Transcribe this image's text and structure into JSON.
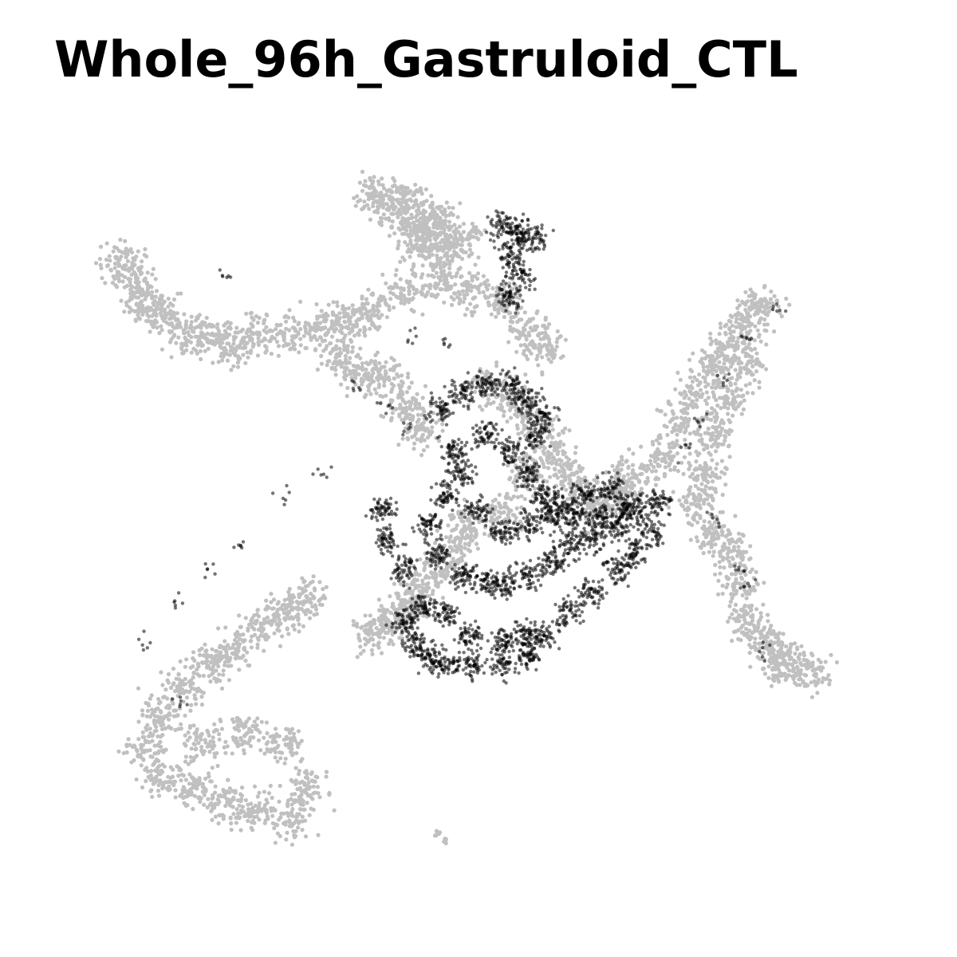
{
  "chart_data": {
    "type": "scatter",
    "title": "Whole_96h_Gastruloid_CTL",
    "xlabel": "",
    "ylabel": "",
    "axes_visible": false,
    "grid": false,
    "legend": "none",
    "xlim": [
      0,
      100
    ],
    "ylim": [
      0,
      100
    ],
    "colors": {
      "background": "#c0c0c0",
      "highlight": "#000000"
    },
    "series": [
      {
        "role": "background",
        "clusters": [
          {
            "id": "top-islet",
            "points": [
              [
                36,
                93
              ],
              [
                38,
                91
              ],
              [
                40,
                92
              ],
              [
                41,
                89
              ],
              [
                42,
                86
              ],
              [
                43,
                88
              ],
              [
                44,
                90
              ],
              [
                45,
                85
              ],
              [
                47,
                87
              ]
            ]
          },
          {
            "id": "upper-left-arm",
            "points": [
              [
                5,
                84
              ],
              [
                7,
                81
              ],
              [
                8,
                78
              ],
              [
                10,
                77
              ],
              [
                13,
                74
              ],
              [
                16,
                74
              ],
              [
                19,
                72
              ],
              [
                22,
                74
              ],
              [
                26,
                74
              ],
              [
                30,
                75
              ],
              [
                33,
                76
              ],
              [
                36,
                77
              ],
              [
                40,
                80
              ],
              [
                44,
                81
              ],
              [
                48,
                80
              ],
              [
                52,
                79
              ],
              [
                55,
                75
              ],
              [
                57,
                72
              ],
              [
                38,
                68
              ],
              [
                40,
                64
              ],
              [
                42,
                61
              ],
              [
                35,
                68
              ],
              [
                32,
                71
              ]
            ]
          },
          {
            "id": "center-body",
            "points": [
              [
                50,
                67
              ],
              [
                53,
                65
              ],
              [
                56,
                62
              ],
              [
                58,
                58
              ],
              [
                60,
                55
              ],
              [
                62,
                52
              ],
              [
                64,
                50
              ],
              [
                66,
                52
              ],
              [
                55,
                55
              ],
              [
                52,
                50
              ],
              [
                48,
                48
              ],
              [
                46,
                45
              ],
              [
                44,
                42
              ],
              [
                42,
                39
              ],
              [
                40,
                37
              ],
              [
                38,
                35
              ],
              [
                36,
                33
              ]
            ]
          },
          {
            "id": "right-arm",
            "points": [
              [
                68,
                55
              ],
              [
                72,
                57
              ],
              [
                74,
                62
              ],
              [
                76,
                66
              ],
              [
                78,
                70
              ],
              [
                80,
                73
              ],
              [
                82,
                76
              ],
              [
                84,
                78
              ],
              [
                82,
                70
              ],
              [
                80,
                65
              ],
              [
                78,
                60
              ],
              [
                77,
                55
              ],
              [
                76,
                51
              ],
              [
                78,
                47
              ],
              [
                80,
                44
              ],
              [
                81,
                40
              ],
              [
                82,
                35
              ],
              [
                84,
                32
              ],
              [
                87,
                30
              ],
              [
                90,
                28
              ],
              [
                86,
                29
              ]
            ]
          },
          {
            "id": "lower-left-lobe",
            "points": [
              [
                28,
                38
              ],
              [
                25,
                36
              ],
              [
                22,
                34
              ],
              [
                19,
                31
              ],
              [
                16,
                29
              ],
              [
                13,
                26
              ],
              [
                10,
                22
              ],
              [
                8,
                18
              ],
              [
                10,
                14
              ],
              [
                14,
                12
              ],
              [
                18,
                10
              ],
              [
                22,
                9
              ],
              [
                26,
                8
              ],
              [
                28,
                12
              ],
              [
                25,
                18
              ],
              [
                20,
                20
              ],
              [
                15,
                18
              ]
            ]
          },
          {
            "id": "bottom-islet",
            "points": [
              [
                44,
                6
              ],
              [
                45,
                5
              ]
            ]
          }
        ]
      },
      {
        "role": "highlight",
        "clusters": [
          {
            "id": "top-islet-cap",
            "points": [
              [
                52,
                89
              ],
              [
                54,
                88
              ],
              [
                56,
                87
              ],
              [
                53,
                85
              ],
              [
                54,
                82
              ],
              [
                53,
                79
              ]
            ]
          },
          {
            "id": "central-mass",
            "points": [
              [
                44,
                64
              ],
              [
                47,
                66
              ],
              [
                50,
                67
              ],
              [
                53,
                67
              ],
              [
                55,
                65
              ],
              [
                57,
                63
              ],
              [
                56,
                60
              ],
              [
                53,
                58
              ],
              [
                55,
                55
              ],
              [
                57,
                52
              ],
              [
                59,
                51
              ],
              [
                62,
                52
              ],
              [
                65,
                53
              ],
              [
                67,
                51
              ],
              [
                66,
                48
              ],
              [
                63,
                46
              ],
              [
                60,
                45
              ],
              [
                58,
                43
              ],
              [
                55,
                41
              ],
              [
                52,
                40
              ],
              [
                50,
                40
              ],
              [
                47,
                41
              ],
              [
                44,
                44
              ],
              [
                43,
                48
              ],
              [
                45,
                52
              ],
              [
                47,
                55
              ],
              [
                49,
                50
              ],
              [
                52,
                47
              ],
              [
                55,
                48
              ],
              [
                58,
                49
              ],
              [
                61,
                49
              ],
              [
                64,
                49
              ],
              [
                68,
                50
              ],
              [
                71,
                51
              ],
              [
                70,
                47
              ],
              [
                68,
                44
              ],
              [
                66,
                42
              ],
              [
                63,
                39
              ],
              [
                60,
                36
              ],
              [
                57,
                33
              ],
              [
                55,
                30
              ],
              [
                52,
                29
              ],
              [
                48,
                29
              ],
              [
                45,
                29
              ],
              [
                43,
                30
              ],
              [
                41,
                32
              ],
              [
                40,
                35
              ],
              [
                42,
                37
              ],
              [
                45,
                36
              ],
              [
                48,
                33
              ],
              [
                52,
                32
              ],
              [
                55,
                33
              ],
              [
                40,
                42
              ],
              [
                38,
                46
              ],
              [
                37,
                50
              ],
              [
                46,
                58
              ],
              [
                50,
                60
              ]
            ]
          },
          {
            "id": "scattered",
            "points": [
              [
                34,
                67
              ],
              [
                38,
                64
              ],
              [
                40,
                61
              ],
              [
                30,
                55
              ],
              [
                25,
                52
              ],
              [
                20,
                45
              ],
              [
                16,
                42
              ],
              [
                12,
                38
              ],
              [
                8,
                32
              ],
              [
                12,
                24
              ],
              [
                74,
                58
              ],
              [
                76,
                62
              ],
              [
                79,
                68
              ],
              [
                82,
                74
              ],
              [
                86,
                78
              ],
              [
                78,
                49
              ],
              [
                81,
                42
              ],
              [
                82,
                40
              ],
              [
                84,
                31
              ],
              [
                18,
                82
              ],
              [
                41,
                74
              ],
              [
                45,
                73
              ]
            ]
          }
        ]
      }
    ]
  }
}
